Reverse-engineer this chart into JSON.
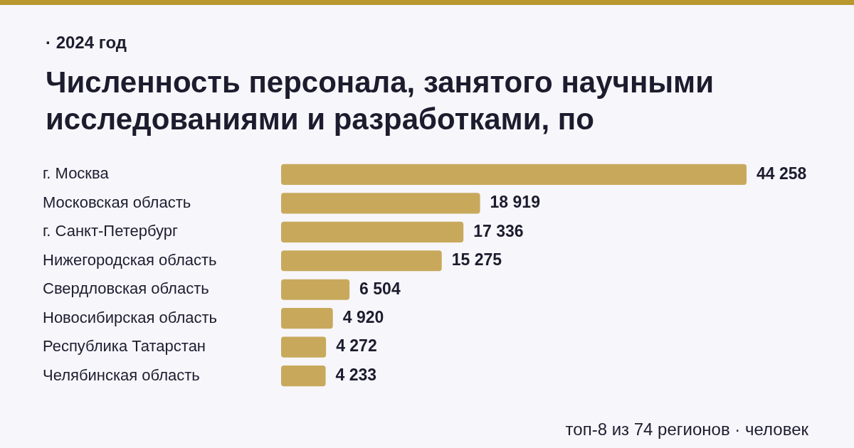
{
  "chart_data": {
    "type": "bar",
    "orientation": "horizontal",
    "subtitle": "· 2024 год",
    "title": "Численность персонала, занятого научными исследованиями и разработками, по",
    "categories": [
      "г. Москва",
      "Московская область",
      "г. Санкт-Петербург",
      "Нижегородская область",
      "Свердловская область",
      "Новосибирская область",
      "Республика Татарстан",
      "Челябинская область"
    ],
    "values": [
      44258,
      18919,
      17336,
      15275,
      6504,
      4920,
      4272,
      4233
    ],
    "value_labels": [
      "44 258",
      "18 919",
      "17 336",
      "15 275",
      "6 504",
      "4 920",
      "4 272",
      "4 233"
    ],
    "color": "#c8a95c",
    "annotations": [
      "топ-8 из 74 регионов · человек"
    ]
  }
}
